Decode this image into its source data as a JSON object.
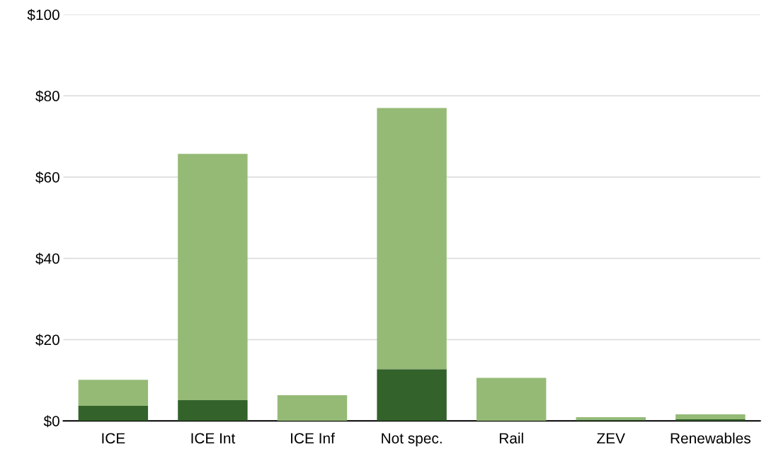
{
  "chart_data": {
    "type": "bar",
    "stacked": true,
    "categories": [
      "ICE",
      "ICE Int",
      "ICE Inf",
      "Not spec.",
      "Rail",
      "ZEV",
      "Renewables"
    ],
    "series": [
      {
        "color": "#33622b",
        "values": [
          3.7,
          5.1,
          0,
          12.7,
          0,
          0.3,
          0.4
        ]
      },
      {
        "color": "#95ba76",
        "values": [
          6.4,
          60.6,
          6.3,
          64.3,
          10.6,
          0.6,
          1.2
        ]
      }
    ],
    "ylim": [
      0,
      100
    ],
    "yticks": [
      {
        "value": 0,
        "label": "$0"
      },
      {
        "value": 20,
        "label": "$20"
      },
      {
        "value": 40,
        "label": "$40"
      },
      {
        "value": 60,
        "label": "$60"
      },
      {
        "value": 80,
        "label": "$80"
      },
      {
        "value": 100,
        "label": "$100"
      }
    ],
    "grid": "y"
  }
}
